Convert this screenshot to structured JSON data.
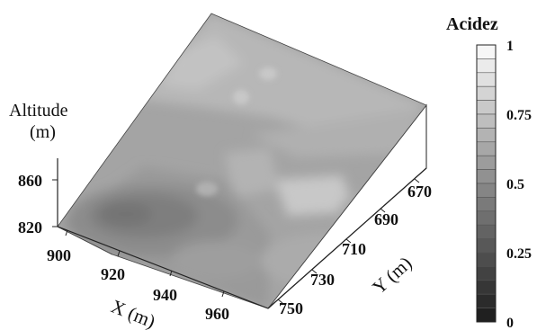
{
  "chart_data": {
    "type": "surface3d",
    "zlabel": [
      "Altitude",
      "(m)"
    ],
    "xlabel": "X (m)",
    "ylabel": "Y (m)",
    "x_ticks": [
      "900",
      "920",
      "940",
      "960"
    ],
    "y_ticks": [
      "670",
      "690",
      "710",
      "730",
      "750"
    ],
    "z_ticks": [
      "860",
      "820"
    ],
    "xlim": [
      900,
      960
    ],
    "ylim": [
      670,
      750
    ],
    "zlim": [
      820,
      860
    ],
    "colorbar": {
      "title": "Acidez",
      "ticks": [
        "1",
        "0.75",
        "0.5",
        "0.25",
        "0"
      ],
      "tick_values": [
        1,
        0.75,
        0.5,
        0.25,
        0
      ],
      "range": [
        0,
        1
      ],
      "levels": 20,
      "colormap": "grayscale (0 = black, 1 = white)"
    },
    "surface_description": "Sloping terrain rising from the front-left corner (low altitude, darkest/low acidity patch near X 910-940) toward the back ridge (lighter, higher acidity ~0.6-0.7); mostly mid-gray values 0.45-0.7."
  }
}
